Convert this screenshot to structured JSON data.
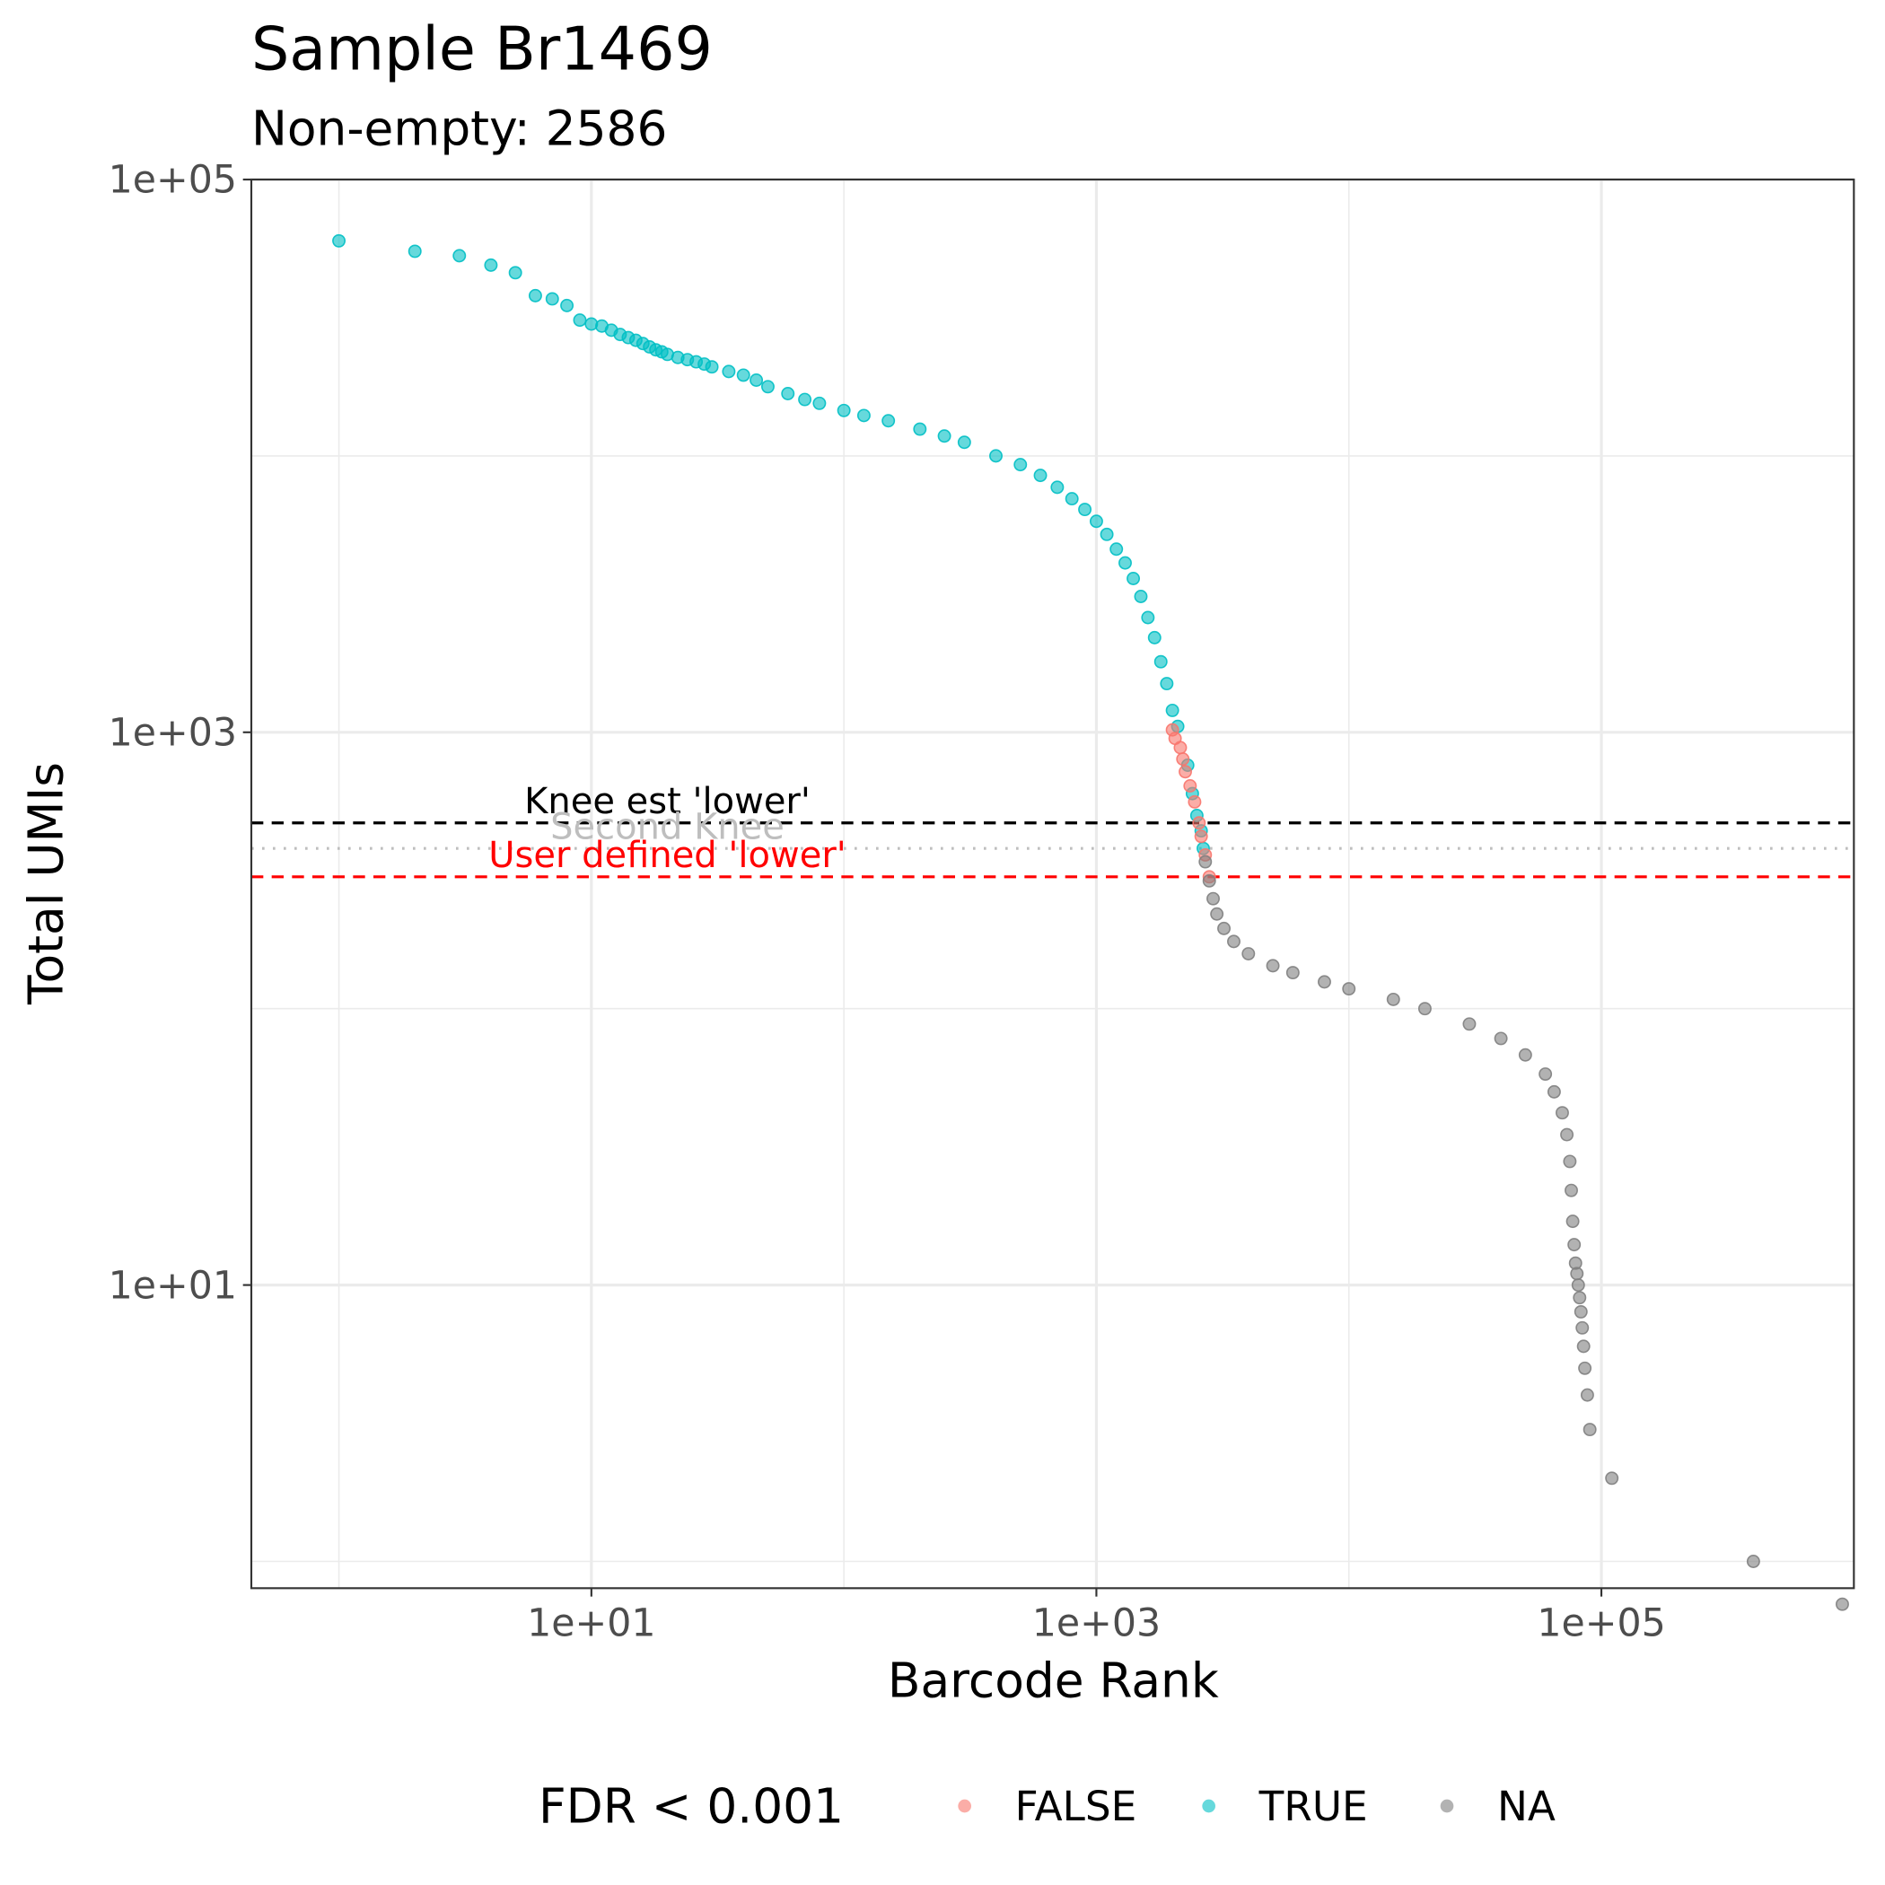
{
  "chart_data": {
    "type": "scatter",
    "title": "Sample Br1469",
    "subtitle": "Non-empty: 2586",
    "xlabel": "Barcode Rank",
    "ylabel": "Total UMIs",
    "x_scale": "log10",
    "y_scale": "log10",
    "xlim": [
      0.45,
      1000000
    ],
    "ylim": [
      0.8,
      100000
    ],
    "x_ticks": [
      10,
      1000,
      100000
    ],
    "x_tick_labels": [
      "1e+01",
      "1e+03",
      "1e+05"
    ],
    "y_ticks": [
      10,
      1000,
      100000
    ],
    "y_tick_labels": [
      "1e+01",
      "1e+03",
      "1e+05"
    ],
    "grid": true,
    "legend": {
      "title": "FDR < 0.001",
      "position": "bottom",
      "entries": [
        {
          "label": "FALSE",
          "color": "#F8766D"
        },
        {
          "label": "TRUE",
          "color": "#00BFC4"
        },
        {
          "label": "NA",
          "color": "#7F7F7F"
        }
      ]
    },
    "hlines": [
      {
        "label": "Knee est 'lower'",
        "y": 470,
        "color": "#000000",
        "style": "dashed"
      },
      {
        "label": "Second Knee",
        "y": 380,
        "color": "#BEBEBE",
        "style": "dotted"
      },
      {
        "label": "User defined 'lower'",
        "y": 300,
        "color": "#FF0000",
        "style": "dashed"
      }
    ],
    "series": [
      {
        "name": "TRUE",
        "color": "#00BFC4",
        "points": [
          [
            1,
            60000
          ],
          [
            2,
            55000
          ],
          [
            3,
            53000
          ],
          [
            4,
            49000
          ],
          [
            5,
            46000
          ],
          [
            6,
            38000
          ],
          [
            7,
            37000
          ],
          [
            8,
            35000
          ],
          [
            9,
            31000
          ],
          [
            10,
            30000
          ],
          [
            11,
            29500
          ],
          [
            12,
            28500
          ],
          [
            13,
            27500
          ],
          [
            14,
            26800
          ],
          [
            15,
            26200
          ],
          [
            16,
            25500
          ],
          [
            17,
            24800
          ],
          [
            18,
            24200
          ],
          [
            19,
            23800
          ],
          [
            20,
            23300
          ],
          [
            22,
            22700
          ],
          [
            24,
            22300
          ],
          [
            26,
            21900
          ],
          [
            28,
            21500
          ],
          [
            30,
            21000
          ],
          [
            35,
            20200
          ],
          [
            40,
            19600
          ],
          [
            45,
            18800
          ],
          [
            50,
            17800
          ],
          [
            60,
            16800
          ],
          [
            70,
            16000
          ],
          [
            80,
            15500
          ],
          [
            100,
            14600
          ],
          [
            120,
            14000
          ],
          [
            150,
            13400
          ],
          [
            200,
            12500
          ],
          [
            250,
            11800
          ],
          [
            300,
            11200
          ],
          [
            400,
            10000
          ],
          [
            500,
            9300
          ],
          [
            600,
            8500
          ],
          [
            700,
            7700
          ],
          [
            800,
            7000
          ],
          [
            900,
            6400
          ],
          [
            1000,
            5800
          ],
          [
            1100,
            5200
          ],
          [
            1200,
            4600
          ],
          [
            1300,
            4100
          ],
          [
            1400,
            3600
          ],
          [
            1500,
            3100
          ],
          [
            1600,
            2600
          ],
          [
            1700,
            2200
          ],
          [
            1800,
            1800
          ],
          [
            1900,
            1500
          ],
          [
            2000,
            1200
          ],
          [
            2100,
            1050
          ],
          [
            2300,
            760
          ],
          [
            2400,
            600
          ],
          [
            2500,
            500
          ],
          [
            2600,
            440
          ],
          [
            2650,
            380
          ]
        ]
      },
      {
        "name": "FALSE",
        "color": "#F8766D",
        "points": [
          [
            2000,
            1020
          ],
          [
            2050,
            950
          ],
          [
            2150,
            880
          ],
          [
            2200,
            800
          ],
          [
            2250,
            720
          ],
          [
            2350,
            640
          ],
          [
            2450,
            560
          ],
          [
            2550,
            470
          ],
          [
            2600,
            420
          ],
          [
            2700,
            360
          ],
          [
            2800,
            300
          ]
        ]
      },
      {
        "name": "NA",
        "color": "#7F7F7F",
        "points": [
          [
            2700,
            340
          ],
          [
            2800,
            290
          ],
          [
            2900,
            250
          ],
          [
            3000,
            220
          ],
          [
            3200,
            195
          ],
          [
            3500,
            175
          ],
          [
            4000,
            158
          ],
          [
            5000,
            143
          ],
          [
            6000,
            135
          ],
          [
            8000,
            125
          ],
          [
            10000,
            118
          ],
          [
            15000,
            108
          ],
          [
            20000,
            100
          ],
          [
            30000,
            88
          ],
          [
            40000,
            78
          ],
          [
            50000,
            68
          ],
          [
            60000,
            58
          ],
          [
            65000,
            50
          ],
          [
            70000,
            42
          ],
          [
            73000,
            35
          ],
          [
            75000,
            28
          ],
          [
            76000,
            22
          ],
          [
            77000,
            17
          ],
          [
            78000,
            14
          ],
          [
            79000,
            12
          ],
          [
            80000,
            11
          ],
          [
            81000,
            10
          ],
          [
            82000,
            9
          ],
          [
            83000,
            8
          ],
          [
            84000,
            7
          ],
          [
            85000,
            6
          ],
          [
            86000,
            5
          ],
          [
            88000,
            4
          ],
          [
            90000,
            3
          ],
          [
            110000,
            2
          ],
          [
            400000,
            1
          ],
          [
            900000,
            0.7
          ]
        ]
      }
    ]
  }
}
